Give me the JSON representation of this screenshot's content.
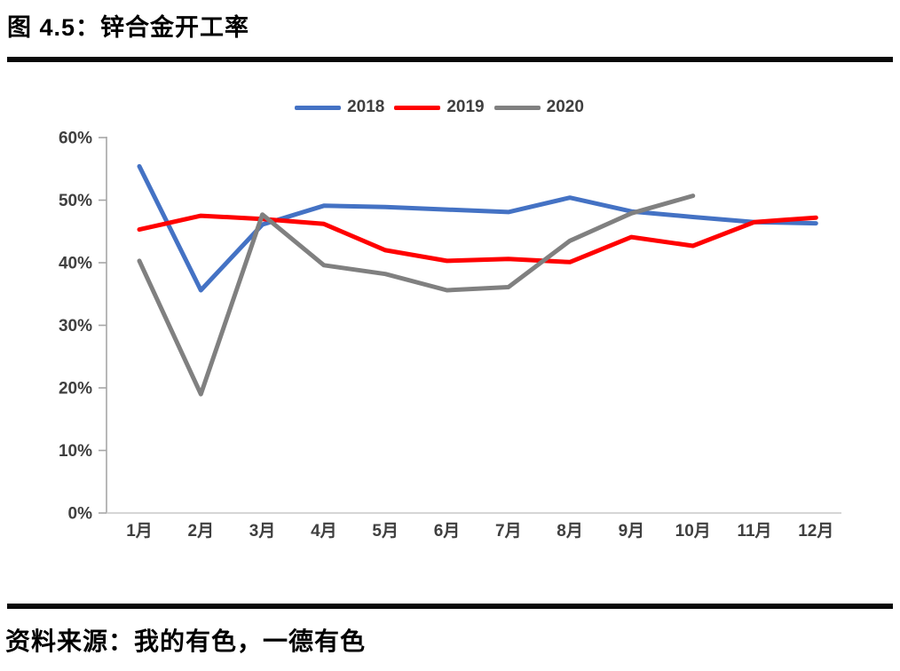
{
  "page": {
    "title": "图 4.5：锌合金开工率",
    "source_note": "资料来源：我的有色，一德有色"
  },
  "chart_data": {
    "type": "line",
    "title": "锌合金开工率",
    "categories": [
      "1月",
      "2月",
      "3月",
      "4月",
      "5月",
      "6月",
      "7月",
      "8月",
      "9月",
      "10月",
      "11月",
      "12月"
    ],
    "series": [
      {
        "name": "2018",
        "color": "#4472C4",
        "values": [
          55.4,
          35.6,
          46.1,
          49.1,
          48.9,
          48.5,
          48.1,
          50.4,
          48.2,
          47.3,
          46.5,
          46.3
        ]
      },
      {
        "name": "2019",
        "color": "#FF0000",
        "values": [
          45.3,
          47.5,
          47.0,
          46.2,
          42.0,
          40.3,
          40.6,
          40.1,
          44.1,
          42.7,
          46.5,
          47.2
        ]
      },
      {
        "name": "2020",
        "color": "#808080",
        "values": [
          40.3,
          19.0,
          47.7,
          39.6,
          38.2,
          35.6,
          36.1,
          43.5,
          47.9,
          50.7,
          null,
          null
        ]
      }
    ],
    "ylim": [
      0,
      60
    ],
    "ytick_step": 10,
    "ytick_labels": [
      "0%",
      "10%",
      "20%",
      "30%",
      "40%",
      "50%",
      "60%"
    ],
    "grid": false,
    "legend_position": "top",
    "axis_color": "#a6a6a6",
    "x_axis_color": "#c9c9c9",
    "line_width": 5
  }
}
